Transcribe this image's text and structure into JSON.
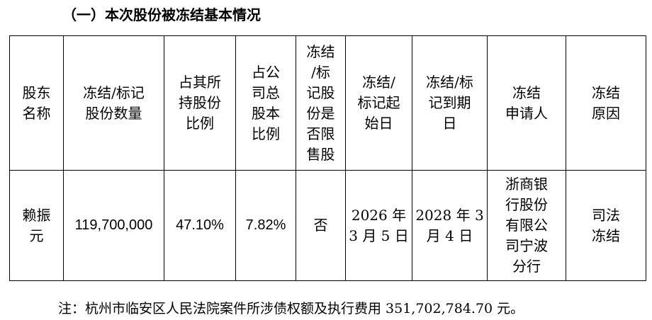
{
  "heading": "（一）本次股份被冻结基本情况",
  "table": {
    "headers": [
      [
        "股东",
        "名称"
      ],
      [
        "冻结/标记",
        "股份数量"
      ],
      [
        "占其所",
        "持股份",
        "比例"
      ],
      [
        "占公",
        "司总",
        "股本",
        "比例"
      ],
      [
        "冻结",
        "/标",
        "记股",
        "份是",
        "否限",
        "售股"
      ],
      [
        "冻结/",
        "标记起",
        "始日"
      ],
      [
        "冻结/标",
        "记到期",
        "日"
      ],
      [
        "冻结",
        "申请人"
      ],
      [
        "冻结",
        "原因"
      ]
    ],
    "row": {
      "shareholder": [
        "赖振",
        "元"
      ],
      "frozen_shares": "119,700,000",
      "pct_of_holding": "47.10%",
      "pct_of_total": "7.82%",
      "is_restricted": "否",
      "start_date": [
        "2026 年",
        "3 月 5 日"
      ],
      "end_date": [
        "2028 年 3",
        "月 4 日"
      ],
      "applicant": [
        "浙商银",
        "行股份",
        "有限公",
        "司宁波",
        "分行"
      ],
      "reason": [
        "司法",
        "冻结"
      ]
    }
  },
  "note": "注：杭州市临安区人民法院案件所涉债权额及执行费用 351,702,784.70 元。"
}
